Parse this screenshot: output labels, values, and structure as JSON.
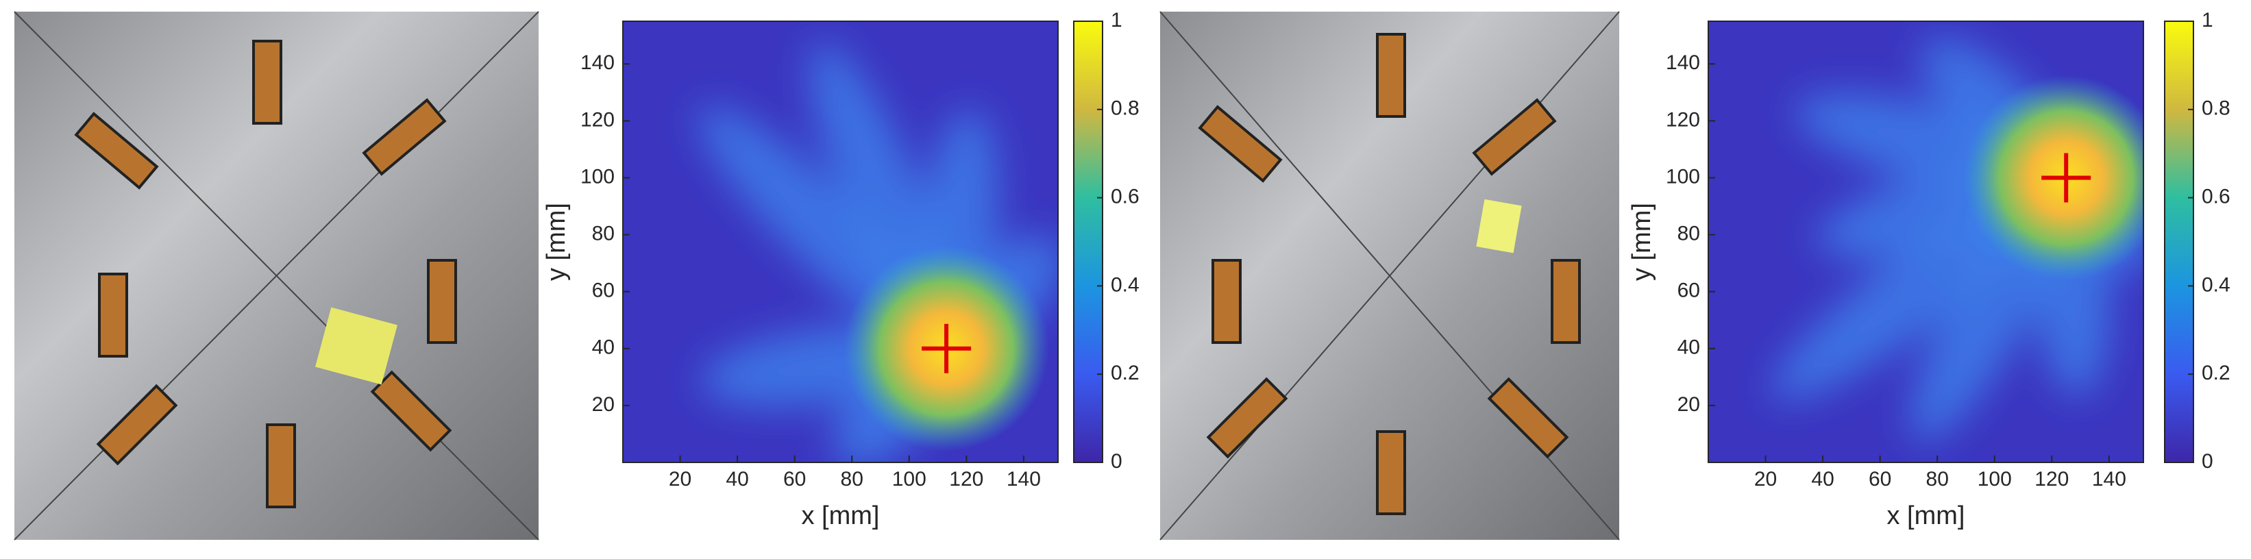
{
  "chart_data": [
    {
      "type": "heatmap",
      "xlabel": "x [mm]",
      "ylabel": "y [mm]",
      "xlim": [
        0,
        152
      ],
      "ylim": [
        0,
        155
      ],
      "xticks": [
        20,
        40,
        60,
        80,
        100,
        120,
        140
      ],
      "yticks": [
        20,
        40,
        60,
        80,
        100,
        120,
        140
      ],
      "colorbar": {
        "lim": [
          0,
          1
        ],
        "ticks": [
          0,
          0.2,
          0.4,
          0.6,
          0.8,
          1
        ]
      },
      "marker": {
        "x": 113,
        "y": 40,
        "color": "#e00000"
      }
    },
    {
      "type": "heatmap",
      "xlabel": "x [mm]",
      "ylabel": "y [mm]",
      "xlim": [
        0,
        152
      ],
      "ylim": [
        0,
        155
      ],
      "xticks": [
        20,
        40,
        60,
        80,
        100,
        120,
        140
      ],
      "yticks": [
        20,
        40,
        60,
        80,
        100,
        120,
        140
      ],
      "colorbar": {
        "lim": [
          0,
          1
        ],
        "ticks": [
          0,
          0.2,
          0.4,
          0.6,
          0.8,
          1
        ]
      },
      "marker": {
        "x": 125,
        "y": 100,
        "color": "#e00000"
      }
    }
  ]
}
